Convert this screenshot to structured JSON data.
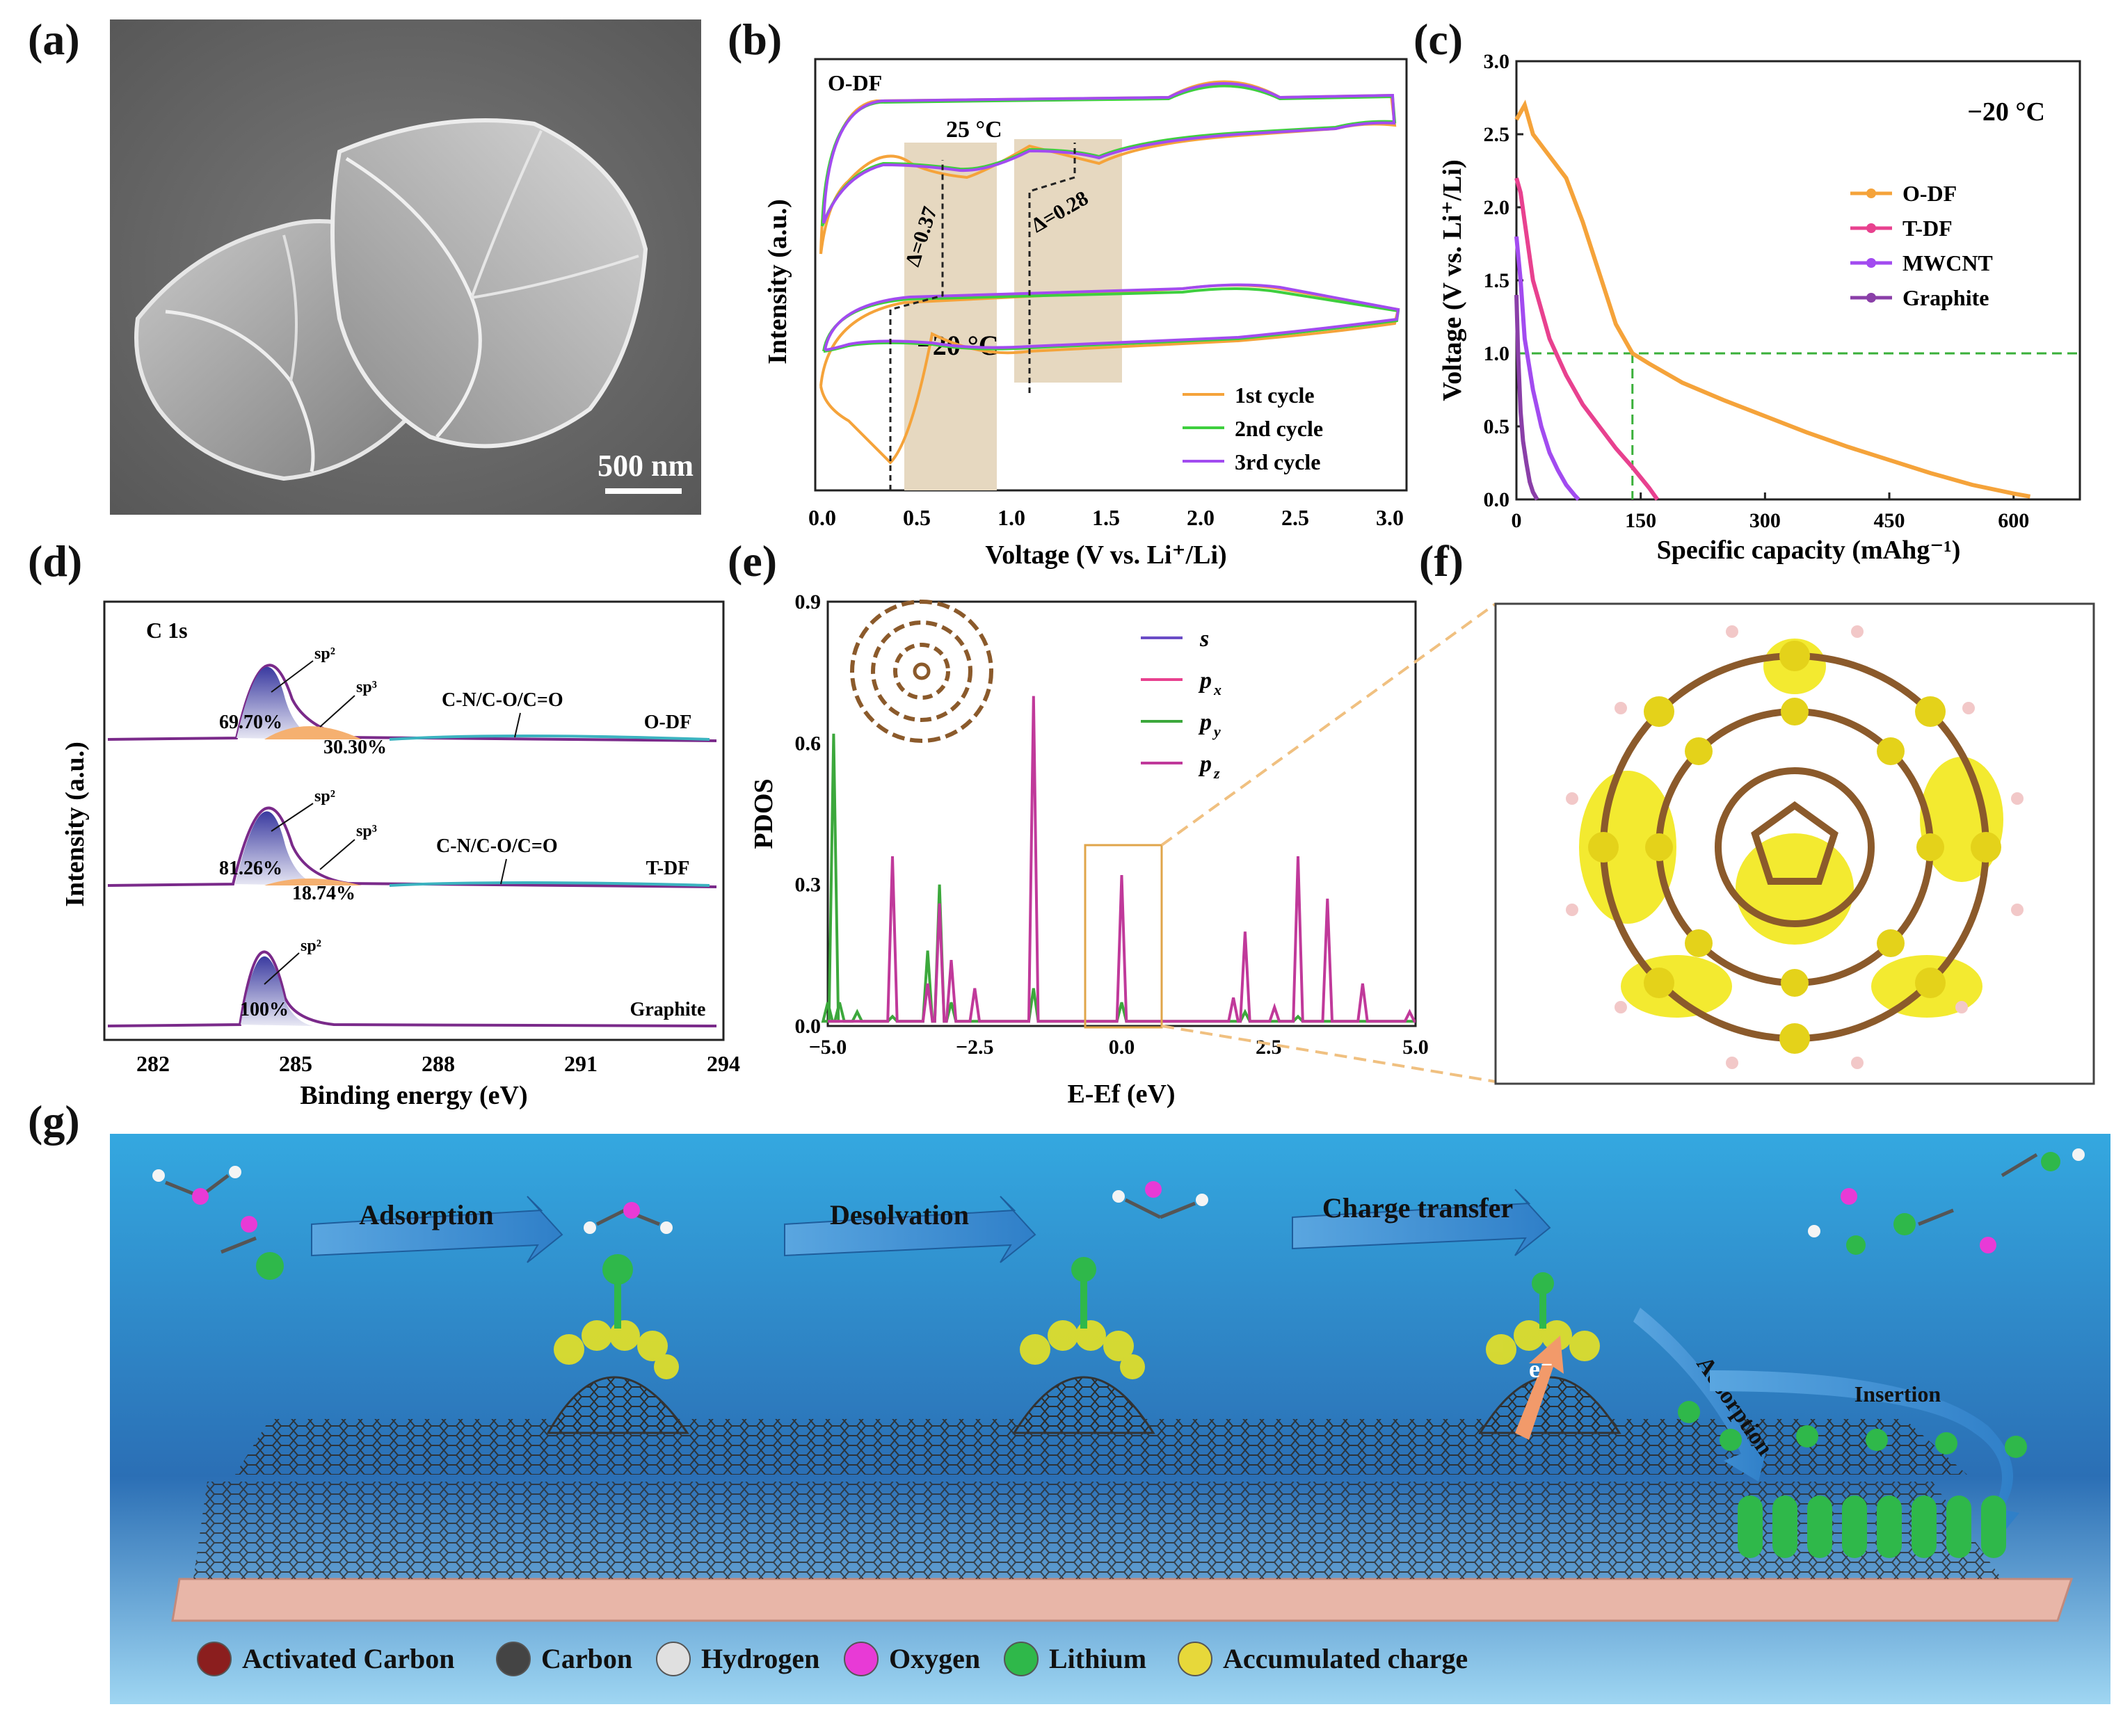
{
  "panel_labels": {
    "a": "(a)",
    "b": "(b)",
    "c": "(c)",
    "d": "(d)",
    "e": "(e)",
    "f": "(f)",
    "g": "(g)"
  },
  "colors": {
    "orange": "#f5a33a",
    "green": "#3ecf3e",
    "purple": "#a24bf0",
    "pink": "#e8418f",
    "magenta": "#c0399a",
    "darkpurple": "#8a3fa8",
    "sem_gray": "#8a8a8a",
    "shade": "#e6d8c0",
    "isosurface": "#f2e81a",
    "bond": "#8b5a2b",
    "water_top": "#34a8e0",
    "water_bottom": "#9fd6f2",
    "substrate": "#e8b6a8",
    "arrow": "#3f8fd2"
  },
  "a": {
    "scale_bar": "500 nm"
  },
  "b": {
    "tag": "O-DF",
    "t_high": "25 °C",
    "t_low": "−20 °C",
    "delta1": "Δ=0.37",
    "delta2": "Δ=0.28",
    "ylabel": "Intensity (a.u.)",
    "xlabel": "Voltage (V vs. Li⁺/Li)",
    "xticks": [
      "0.0",
      "0.5",
      "1.0",
      "1.5",
      "2.0",
      "2.5",
      "3.0"
    ],
    "legend": [
      "1st cycle",
      "2nd cycle",
      "3rd cycle"
    ]
  },
  "chart_data": [
    {
      "type": "line",
      "panel": "c",
      "title": "",
      "annotation": "−20 °C",
      "xlabel": "Specific capacity (mAhg⁻¹)",
      "ylabel": "Voltage (V vs. Li⁺/Li)",
      "xlim": [
        0,
        680
      ],
      "ylim": [
        0,
        3.0
      ],
      "xticks": [
        "0",
        "150",
        "300",
        "450",
        "600"
      ],
      "yticks": [
        "0.0",
        "0.5",
        "1.0",
        "1.5",
        "2.0",
        "2.5",
        "3.0"
      ],
      "legend_position": "center-right",
      "reference_lines": {
        "y": 1.0,
        "x": 140
      },
      "series": [
        {
          "name": "O-DF",
          "color": "#f5a33a",
          "x": [
            0,
            10,
            20,
            40,
            60,
            80,
            100,
            120,
            140,
            160,
            200,
            250,
            300,
            350,
            400,
            450,
            500,
            550,
            600,
            620
          ],
          "y": [
            2.6,
            2.7,
            2.5,
            2.35,
            2.2,
            1.9,
            1.55,
            1.2,
            1.0,
            0.93,
            0.8,
            0.68,
            0.57,
            0.46,
            0.36,
            0.27,
            0.18,
            0.1,
            0.04,
            0.02
          ]
        },
        {
          "name": "T-DF",
          "color": "#e8418f",
          "x": [
            0,
            5,
            10,
            20,
            40,
            60,
            80,
            100,
            120,
            140,
            160,
            170
          ],
          "y": [
            2.2,
            2.1,
            1.9,
            1.5,
            1.1,
            0.85,
            0.65,
            0.5,
            0.35,
            0.22,
            0.08,
            0.0
          ]
        },
        {
          "name": "MWCNT",
          "color": "#a24bf0",
          "x": [
            0,
            5,
            10,
            20,
            30,
            40,
            50,
            60,
            70,
            75
          ],
          "y": [
            1.8,
            1.5,
            1.1,
            0.75,
            0.5,
            0.32,
            0.2,
            0.1,
            0.03,
            0.0
          ]
        },
        {
          "name": "Graphite",
          "color": "#8a3fa8",
          "x": [
            0,
            2,
            5,
            8,
            12,
            16,
            20,
            25
          ],
          "y": [
            1.4,
            1.0,
            0.6,
            0.4,
            0.25,
            0.12,
            0.05,
            0.0
          ]
        }
      ]
    },
    {
      "type": "line",
      "panel": "d",
      "tag": "C 1s",
      "xlabel": "Binding energy (eV)",
      "ylabel": "Intensity (a.u.)",
      "xlim": [
        281,
        294
      ],
      "xticks": [
        "282",
        "285",
        "288",
        "291",
        "294"
      ],
      "series": [
        {
          "name": "O-DF",
          "peaks": {
            "sp²": "69.70%",
            "sp³": "30.30%"
          },
          "other": "C-N/C-O/C=O"
        },
        {
          "name": "T-DF",
          "peaks": {
            "sp²": "81.26%",
            "sp³": "18.74%"
          },
          "other": "C-N/C-O/C=O"
        },
        {
          "name": "Graphite",
          "peaks": {
            "sp²": "100%"
          }
        }
      ],
      "labels": {
        "sp2": "sp²",
        "sp3": "sp³"
      }
    },
    {
      "type": "line",
      "panel": "e",
      "xlabel": "E-Ef (eV)",
      "ylabel": "PDOS",
      "xlim": [
        -5,
        5
      ],
      "ylim": [
        0,
        0.9
      ],
      "xticks": [
        "−5.0",
        "−2.5",
        "0.0",
        "2.5",
        "5.0"
      ],
      "yticks": [
        "0.0",
        "0.3",
        "0.6",
        "0.9"
      ],
      "series": [
        {
          "name": "s",
          "color": "#6a4cc6"
        },
        {
          "name": "px",
          "color": "#e8418f"
        },
        {
          "name": "py",
          "color": "#3ca83c",
          "x": [
            -5,
            -4.9,
            -4.8,
            -4.5,
            -3.9,
            -3.3,
            -3.1,
            -2.9,
            -1.5,
            0.0,
            2.1,
            3.0
          ],
          "y": [
            0.05,
            0.62,
            0.05,
            0.03,
            0.02,
            0.16,
            0.3,
            0.05,
            0.08,
            0.05,
            0.03,
            0.02
          ]
        },
        {
          "name": "pz",
          "color": "#c0399a",
          "x": [
            -3.9,
            -3.3,
            -3.1,
            -2.9,
            -2.5,
            -1.5,
            0.0,
            1.9,
            2.1,
            2.6,
            3.0,
            3.5,
            4.1,
            4.9
          ],
          "y": [
            0.36,
            0.09,
            0.26,
            0.14,
            0.08,
            0.7,
            0.32,
            0.06,
            0.2,
            0.04,
            0.36,
            0.27,
            0.09,
            0.03
          ]
        }
      ],
      "legend_labels": [
        "s",
        "p",
        "p",
        "p"
      ],
      "legend_subs": [
        "",
        "x",
        "y",
        "z"
      ]
    }
  ],
  "g": {
    "steps": [
      "Adsorption",
      "Desolvation",
      "Charge transfer"
    ],
    "side_labels": [
      "Adsorption",
      "Insertion"
    ],
    "electron": "e⁻",
    "legend": [
      {
        "label": "Activated Carbon",
        "color": "#8b1e1e"
      },
      {
        "label": "Carbon",
        "color": "#444444"
      },
      {
        "label": "Hydrogen",
        "color": "#e0e0e0"
      },
      {
        "label": "Oxygen",
        "color": "#e83ad6"
      },
      {
        "label": "Lithium",
        "color": "#2fb84a"
      },
      {
        "label": "Accumulated charge",
        "color": "#e7d83a"
      }
    ]
  }
}
